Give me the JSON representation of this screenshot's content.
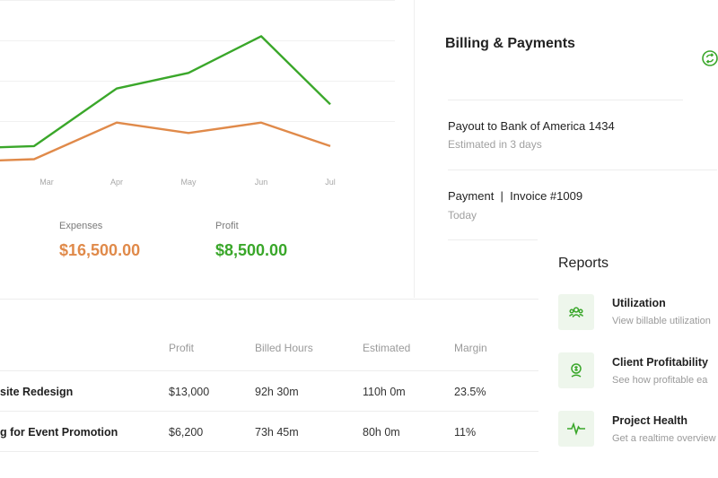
{
  "chart_data": {
    "type": "line",
    "categories": [
      "Mar",
      "Apr",
      "May",
      "Jun",
      "Jul"
    ],
    "series": [
      {
        "name": "Profit",
        "color": "#3aa72a",
        "values": [
          9.6,
          11.8,
          12.4,
          13.8,
          11.2
        ]
      },
      {
        "name": "Expenses",
        "color": "#e08a4a",
        "values": [
          9.1,
          10.5,
          10.1,
          10.5,
          9.6
        ]
      }
    ],
    "title": "",
    "xlabel": "",
    "ylabel": "",
    "ylim": [
      8.5,
      14.5
    ],
    "grid": false
  },
  "summary": {
    "expenses_label": "Expenses",
    "expenses_value": "$16,500.00",
    "profit_label": "Profit",
    "profit_value": "$8,500.00"
  },
  "billing": {
    "title": "Billing & Payments",
    "icon": "refresh-icon",
    "items": [
      {
        "title": "Payout to Bank of America 1434",
        "subtitle": "Estimated in 3 days"
      },
      {
        "title": "Payment  |  Invoice #1009",
        "subtitle": "Today"
      }
    ]
  },
  "reports": {
    "title": "Reports",
    "items": [
      {
        "name": "Utilization",
        "desc": "View billable utilization",
        "icon": "team-icon"
      },
      {
        "name": "Client Profitability",
        "desc": "See how profitable ea",
        "icon": "money-icon"
      },
      {
        "name": "Project Health",
        "desc": "Get a realtime overview",
        "icon": "pulse-icon"
      }
    ]
  },
  "table": {
    "headers": [
      "Profit",
      "Billed Hours",
      "Estimated",
      "Margin"
    ],
    "rows": [
      {
        "project": "site Redesign",
        "profit": "$13,000",
        "billed": "92h 30m",
        "estimated": "110h 0m",
        "margin": "23.5%"
      },
      {
        "project": "g for Event Promotion",
        "profit": "$6,200",
        "billed": "73h 45m",
        "estimated": "80h 0m",
        "margin": "11%"
      }
    ]
  },
  "colors": {
    "accent_green": "#3aa72a",
    "accent_orange": "#e08a4a"
  }
}
